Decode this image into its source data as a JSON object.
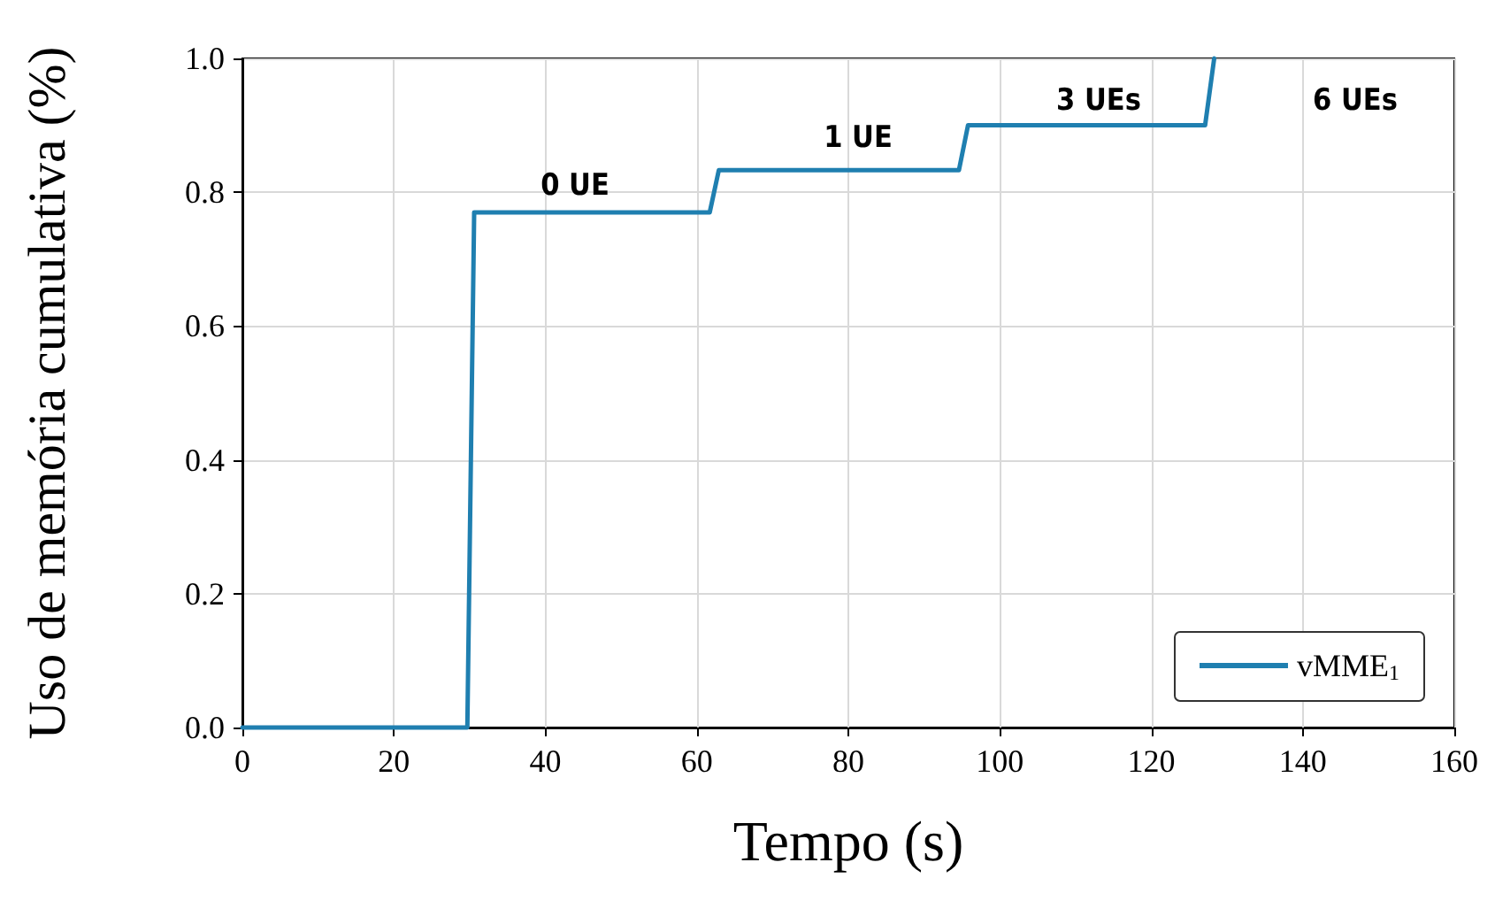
{
  "chart_data": {
    "type": "line",
    "xlabel": "Tempo (s)",
    "ylabel": "Uso de memória cumulativa (%)",
    "series": [
      {
        "name": "vMME$_{1}$",
        "color": "#1f7fb0",
        "x": [
          0,
          29.7,
          30.6,
          61.7,
          62.9,
          94.6,
          95.8,
          127.1,
          128.3
        ],
        "values": [
          0,
          0,
          0.77,
          0.77,
          0.833,
          0.833,
          0.9,
          0.9,
          1.0
        ]
      }
    ],
    "xlim": [
      0,
      160
    ],
    "xticks": [
      0,
      20,
      40,
      60,
      80,
      100,
      120,
      140,
      160
    ],
    "ylim": [
      0,
      1
    ],
    "yticks": [
      {
        "value": 0,
        "label": "0.0"
      },
      {
        "value": 0.2,
        "label": "0.2"
      },
      {
        "value": 0.4,
        "label": "0.4"
      },
      {
        "value": 0.6,
        "label": "0.6"
      },
      {
        "value": 0.8,
        "label": "0.8"
      },
      {
        "value": 1,
        "label": "1.0"
      }
    ],
    "annotations": [
      "0 UE",
      "1 UE",
      "3 UEs",
      "6 UEs"
    ],
    "grid": true,
    "legend": "bottom right",
    "marker": "none",
    "line_style": "solid"
  }
}
